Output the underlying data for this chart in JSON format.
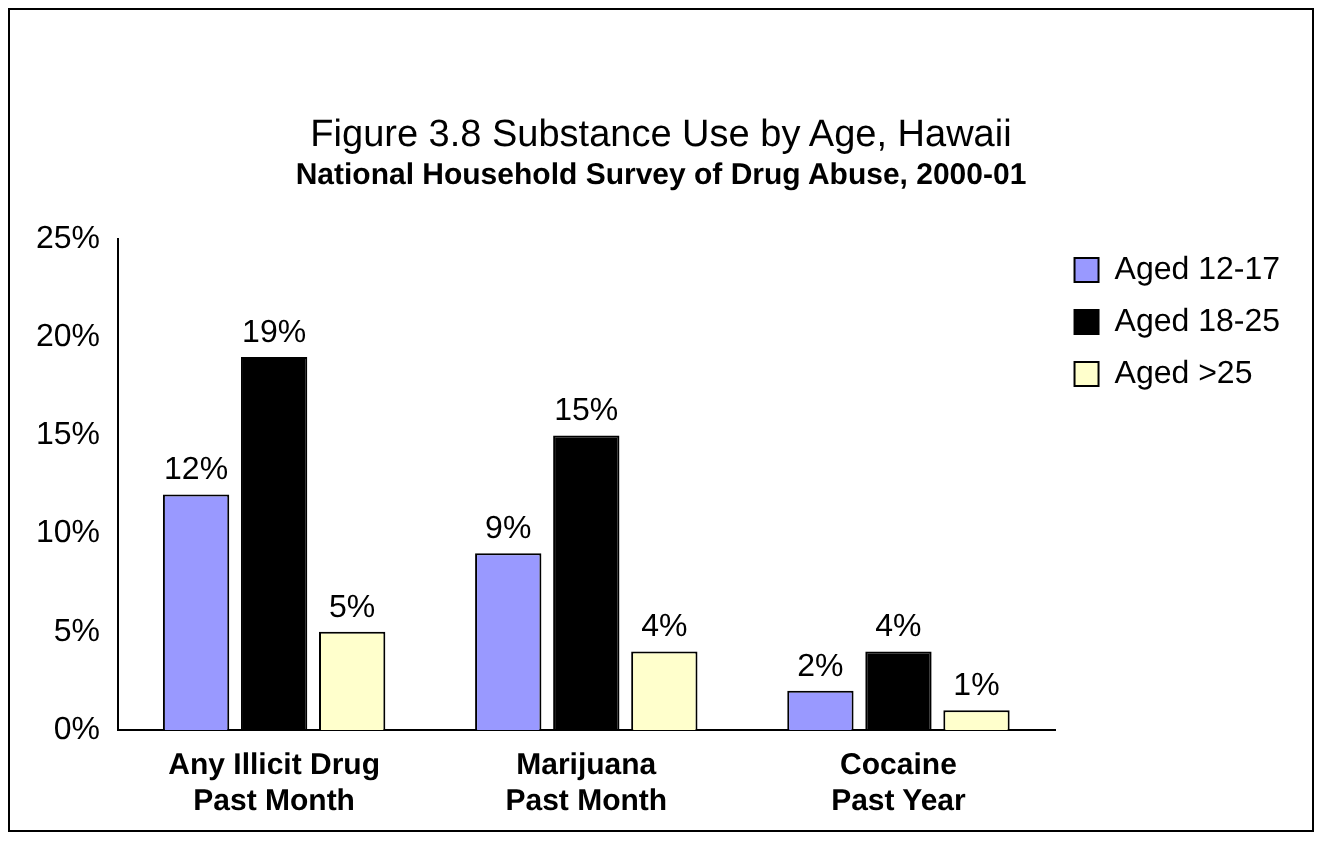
{
  "chart_data": {
    "type": "bar",
    "title": "Figure 3.8 Substance Use by Age, Hawaii",
    "subtitle": "National Household Survey of Drug Abuse, 2000-01",
    "categories": [
      "Any Illicit Drug\nPast Month",
      "Marijuana\nPast Month",
      "Cocaine\nPast Year"
    ],
    "series": [
      {
        "name": "Aged 12-17",
        "color": "#9999ff",
        "values": [
          12,
          9,
          2
        ],
        "value_labels": [
          "12%",
          "9%",
          "2%"
        ]
      },
      {
        "name": "Aged 18-25",
        "color": "#000000",
        "values": [
          19,
          15,
          4
        ],
        "value_labels": [
          "19%",
          "15%",
          "4%"
        ]
      },
      {
        "name": "Aged >25",
        "color": "#ffffcc",
        "values": [
          5,
          4,
          1
        ],
        "value_labels": [
          "5%",
          "4%",
          "1%"
        ]
      }
    ],
    "ylim": [
      0,
      25
    ],
    "yticks": [
      {
        "value": 0,
        "label": "0%"
      },
      {
        "value": 5,
        "label": "5%"
      },
      {
        "value": 10,
        "label": "10%"
      },
      {
        "value": 15,
        "label": "15%"
      },
      {
        "value": 20,
        "label": "20%"
      },
      {
        "value": 25,
        "label": "25%"
      }
    ],
    "grid": false,
    "legend": "top right"
  }
}
